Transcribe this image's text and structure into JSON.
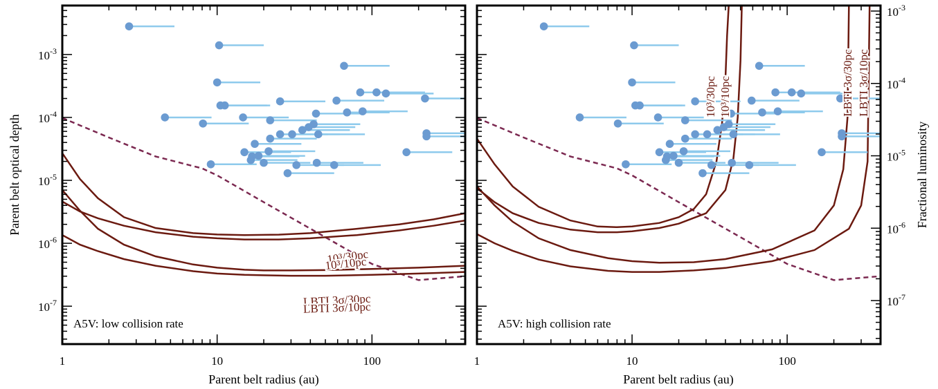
{
  "chart_data": {
    "type": "scatter",
    "x_axis": {
      "label": "Parent belt radius (au)",
      "scale": "log",
      "range": [
        1,
        400
      ],
      "ticks": [
        "1",
        "10",
        "100"
      ]
    },
    "y_axis_left": {
      "label": "Parent belt optical depth",
      "scale": "log",
      "range": [
        2.5e-08,
        0.006
      ],
      "ticks": [
        {
          "base": "10",
          "exp": "-7"
        },
        {
          "base": "10",
          "exp": "-6"
        },
        {
          "base": "10",
          "exp": "-5"
        },
        {
          "base": "10",
          "exp": "-4"
        },
        {
          "base": "10",
          "exp": "-3"
        }
      ]
    },
    "y_axis_right": {
      "label": "Fractional luminosity",
      "ticks": [
        {
          "base": "10",
          "exp": "-7"
        },
        {
          "base": "10",
          "exp": "-6"
        },
        {
          "base": "10",
          "exp": "-5"
        },
        {
          "base": "10",
          "exp": "-4"
        },
        {
          "base": "10",
          "exp": "-3"
        }
      ]
    },
    "colors": {
      "points": "#6b9bd1",
      "bars": "#8ecaec",
      "curves": "#6b1a10",
      "dashed": "#7b2850"
    },
    "observed_belts": [
      {
        "r": 2.7,
        "tau": 0.0028,
        "r_end": 5.3
      },
      {
        "r": 10.3,
        "tau": 0.0014,
        "r_end": 20
      },
      {
        "r": 66,
        "tau": 0.00066,
        "r_end": 130
      },
      {
        "r": 10,
        "tau": 0.00036,
        "r_end": 19
      },
      {
        "r": 84,
        "tau": 0.00025,
        "r_end": 170
      },
      {
        "r": 107,
        "tau": 0.00025,
        "r_end": 220
      },
      {
        "r": 123,
        "tau": 0.00024,
        "r_end": 250
      },
      {
        "r": 25.5,
        "tau": 0.00018,
        "r_end": 50
      },
      {
        "r": 59,
        "tau": 0.000185,
        "r_end": 120
      },
      {
        "r": 220,
        "tau": 0.0002,
        "r_end": 440
      },
      {
        "r": 10.5,
        "tau": 0.000155,
        "r_end": 21
      },
      {
        "r": 11.2,
        "tau": 0.000155,
        "r_end": 22
      },
      {
        "r": 69,
        "tau": 0.00012,
        "r_end": 130
      },
      {
        "r": 87,
        "tau": 0.000125,
        "r_end": 170
      },
      {
        "r": 4.6,
        "tau": 0.0001,
        "r_end": 9.2
      },
      {
        "r": 14.7,
        "tau": 0.0001,
        "r_end": 29
      },
      {
        "r": 43.5,
        "tau": 0.000115,
        "r_end": 85
      },
      {
        "r": 22,
        "tau": 9e-05,
        "r_end": 44
      },
      {
        "r": 8.1,
        "tau": 8e-05,
        "r_end": 16
      },
      {
        "r": 42,
        "tau": 7.8e-05,
        "r_end": 84
      },
      {
        "r": 39,
        "tau": 7e-05,
        "r_end": 78
      },
      {
        "r": 35.5,
        "tau": 6.3e-05,
        "r_end": 72
      },
      {
        "r": 30.5,
        "tau": 5.4e-05,
        "r_end": 62
      },
      {
        "r": 25.5,
        "tau": 5.4e-05,
        "r_end": 52
      },
      {
        "r": 45,
        "tau": 5.4e-05,
        "r_end": 90
      },
      {
        "r": 225,
        "tau": 5.6e-05,
        "r_end": 450
      },
      {
        "r": 22,
        "tau": 4.6e-05,
        "r_end": 44
      },
      {
        "r": 225,
        "tau": 5e-05,
        "r_end": 450
      },
      {
        "r": 17.5,
        "tau": 3.8e-05,
        "r_end": 35
      },
      {
        "r": 15,
        "tau": 2.8e-05,
        "r_end": 30
      },
      {
        "r": 21.5,
        "tau": 2.9e-05,
        "r_end": 43
      },
      {
        "r": 16.8,
        "tau": 2.4e-05,
        "r_end": 34
      },
      {
        "r": 18.5,
        "tau": 2.45e-05,
        "r_end": 37
      },
      {
        "r": 167,
        "tau": 2.8e-05,
        "r_end": 330
      },
      {
        "r": 16.5,
        "tau": 2.1e-05,
        "r_end": 33
      },
      {
        "r": 20,
        "tau": 1.9e-05,
        "r_end": 40
      },
      {
        "r": 9.1,
        "tau": 1.8e-05,
        "r_end": 18
      },
      {
        "r": 32.5,
        "tau": 1.75e-05,
        "r_end": 66
      },
      {
        "r": 44,
        "tau": 1.9e-05,
        "r_end": 88
      },
      {
        "r": 57,
        "tau": 1.75e-05,
        "r_end": 114
      },
      {
        "r": 28.5,
        "tau": 1.3e-05,
        "r_end": 57
      }
    ],
    "panels": [
      {
        "label": "A5V: low collision rate",
        "dashed_curve": {
          "x": [
            1,
            2,
            4,
            8,
            10,
            20,
            50,
            100,
            200,
            400
          ],
          "y": [
            9.8e-05,
            4.8e-05,
            2.4e-05,
            1.55e-05,
            1.2e-05,
            4.5e-06,
            1.25e-06,
            4.7e-07,
            2.6e-07,
            3e-07
          ]
        },
        "curves": [
          {
            "label": "10³/30pc",
            "x": [
              1,
              1.3,
              1.7,
              2.5,
              4,
              7,
              10,
              15,
              25,
              40,
              80,
              150,
              250,
              400
            ],
            "y": [
              2.7e-05,
              1.05e-05,
              5.2e-06,
              2.6e-06,
              1.75e-06,
              1.45e-06,
              1.38e-06,
              1.35e-06,
              1.37e-06,
              1.45e-06,
              1.7e-06,
              2e-06,
              2.4e-06,
              3e-06
            ]
          },
          {
            "label": "10³/10pc",
            "x": [
              1,
              1.3,
              1.7,
              2.5,
              4,
              7,
              10,
              15,
              25,
              40,
              80,
              150,
              250,
              400
            ],
            "y": [
              4.6e-06,
              3.2e-06,
              2.5e-06,
              1.9e-06,
              1.5e-06,
              1.27e-06,
              1.2e-06,
              1.15e-06,
              1.15e-06,
              1.2e-06,
              1.35e-06,
              1.6e-06,
              1.9e-06,
              2.3e-06
            ]
          },
          {
            "label": "LBTI 3σ/30pc",
            "x": [
              1,
              1.3,
              1.7,
              2.5,
              4,
              7,
              10,
              15,
              20,
              30,
              50,
              100,
              200,
              400
            ],
            "y": [
              7e-06,
              3.3e-06,
              1.7e-06,
              9.5e-07,
              6.2e-07,
              4.6e-07,
              4.1e-07,
              3.8e-07,
              3.7e-07,
              3.7e-07,
              3.75e-07,
              3.9e-07,
              4.1e-07,
              4.4e-07
            ]
          },
          {
            "label": "LBTI 3σ/10pc",
            "x": [
              1,
              1.3,
              1.7,
              2.5,
              4,
              7,
              10,
              15,
              20,
              30,
              50,
              100,
              200,
              400
            ],
            "y": [
              1.35e-06,
              9.5e-07,
              7.5e-07,
              5.6e-07,
              4.4e-07,
              3.6e-07,
              3.3e-07,
              3.15e-07,
              3.1e-07,
              3.05e-07,
              3.05e-07,
              3.15e-07,
              3.3e-07,
              3.5e-07
            ]
          }
        ]
      },
      {
        "label": "A5V: high collision rate",
        "dashed_curve": {
          "x": [
            1,
            2,
            4,
            8,
            10,
            20,
            50,
            100,
            200,
            400
          ],
          "y": [
            9.8e-05,
            4.8e-05,
            2.4e-05,
            1.55e-05,
            1.2e-05,
            4.5e-06,
            1.25e-06,
            4.7e-07,
            2.6e-07,
            3e-07
          ]
        },
        "curves": [
          {
            "label": "10³/30pc",
            "x": [
              1,
              1.3,
              1.7,
              2.5,
              4,
              6,
              8,
              10,
              15,
              20,
              25,
              30,
              35,
              38,
              40,
              41,
              42
            ],
            "y": [
              4.6e-05,
              1.8e-05,
              8e-06,
              3.8e-06,
              2.3e-06,
              1.85e-06,
              1.8e-06,
              1.85e-06,
              2.1e-06,
              2.6e-06,
              3.5e-06,
              6e-06,
              2e-05,
              8e-05,
              0.0004,
              0.002,
              0.006
            ]
          },
          {
            "label": "10³/10pc",
            "x": [
              1,
              1.3,
              1.7,
              2.5,
              4,
              6,
              8,
              10,
              15,
              20,
              30,
              40,
              45,
              48,
              50,
              51
            ],
            "y": [
              7.5e-06,
              4.5e-06,
              3e-06,
              2.1e-06,
              1.65e-06,
              1.5e-06,
              1.5e-06,
              1.55e-06,
              1.75e-06,
              2.05e-06,
              3e-06,
              7e-06,
              2.2e-05,
              0.0001,
              0.0008,
              0.006
            ]
          },
          {
            "label": "LBTI 3σ/30pc",
            "x": [
              1,
              1.3,
              1.7,
              2.5,
              4,
              7,
              10,
              15,
              25,
              40,
              80,
              150,
              200,
              230,
              245,
              250
            ],
            "y": [
              8e-06,
              4e-06,
              2.2e-06,
              1.2e-06,
              7.8e-07,
              5.8e-07,
              5.2e-07,
              4.9e-07,
              5e-07,
              5.6e-07,
              8e-07,
              1.6e-06,
              4e-06,
              1.5e-05,
              0.0001,
              0.006
            ]
          },
          {
            "label": "LBTI 3σ/10pc",
            "x": [
              1,
              1.3,
              1.7,
              2.5,
              4,
              7,
              10,
              15,
              25,
              40,
              80,
              150,
              250,
              300,
              330,
              340
            ],
            "y": [
              1.4e-06,
              1e-06,
              7.6e-07,
              5.5e-07,
              4.3e-07,
              3.65e-07,
              3.5e-07,
              3.5e-07,
              3.7e-07,
              4.05e-07,
              5.2e-07,
              7.8e-07,
              1.7e-06,
              4e-06,
              2e-05,
              0.006
            ]
          }
        ]
      }
    ]
  }
}
